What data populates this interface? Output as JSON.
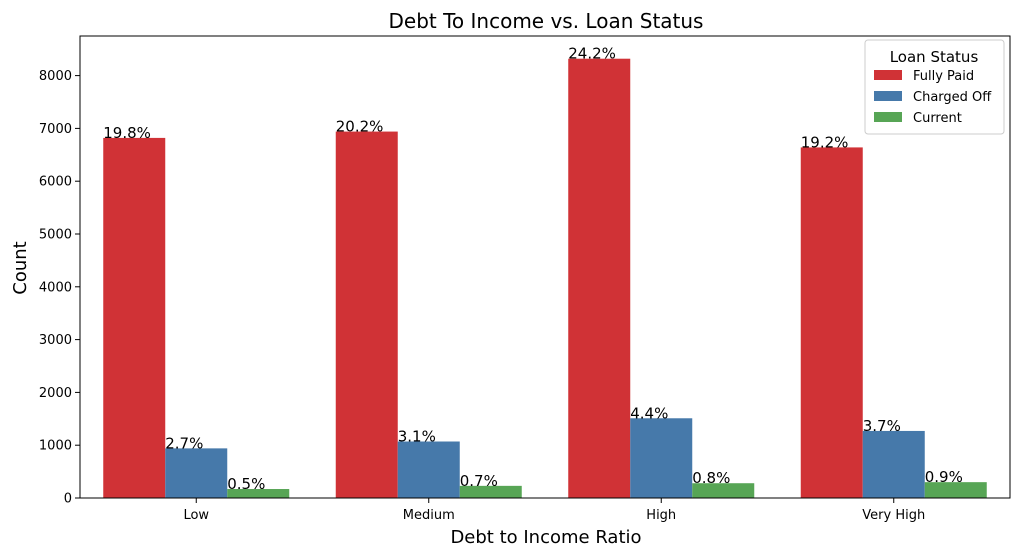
{
  "chart_data": {
    "type": "bar",
    "title": "Debt To Income vs. Loan Status",
    "xlabel": "Debt to Income Ratio",
    "ylabel": "Count",
    "ylim": [
      0,
      8750
    ],
    "yticks": [
      0,
      1000,
      2000,
      3000,
      4000,
      5000,
      6000,
      7000,
      8000
    ],
    "categories": [
      "Low",
      "Medium",
      "High",
      "Very High"
    ],
    "series": [
      {
        "name": "Fully Paid",
        "color": "#d03236",
        "values": [
          6820,
          6940,
          8320,
          6640
        ],
        "labels": [
          "19.8%",
          "20.2%",
          "24.2%",
          "19.2%"
        ]
      },
      {
        "name": "Charged Off",
        "color": "#4679aa",
        "values": [
          940,
          1070,
          1510,
          1270
        ],
        "labels": [
          "2.7%",
          "3.1%",
          "4.4%",
          "3.7%"
        ]
      },
      {
        "name": "Current",
        "color": "#57a555",
        "values": [
          170,
          230,
          280,
          300
        ],
        "labels": [
          "0.5%",
          "0.7%",
          "0.8%",
          "0.9%"
        ]
      }
    ],
    "legend": {
      "title": "Loan Status",
      "position": "top-right"
    },
    "grid": false
  }
}
